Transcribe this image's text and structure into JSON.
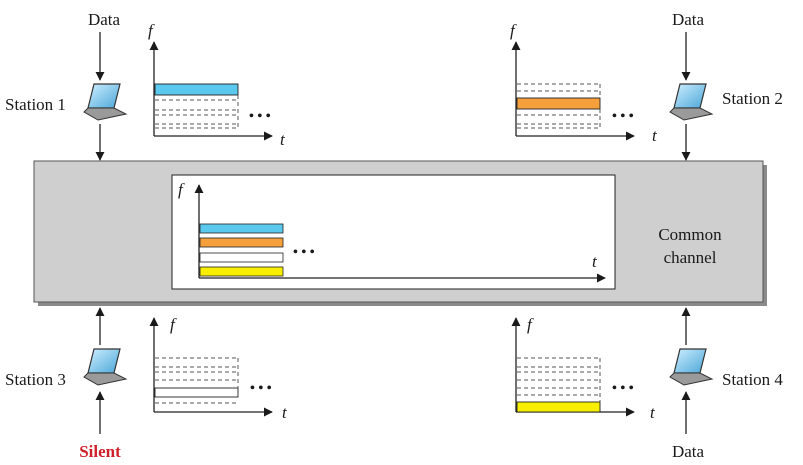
{
  "stations": [
    {
      "name": "Station 1",
      "io_label": "Data",
      "active_band": 0,
      "band_color": "#5bc8ee"
    },
    {
      "name": "Station 2",
      "io_label": "Data",
      "active_band": 1,
      "band_color": "#f5a03c"
    },
    {
      "name": "Station 3",
      "io_label": "Silent",
      "active_band": 2,
      "band_color": "#ffffff"
    },
    {
      "name": "Station 4",
      "io_label": "Data",
      "active_band": 3,
      "band_color": "#f7ee00"
    }
  ],
  "axis_labels": {
    "frequency": "f",
    "time": "t"
  },
  "ellipsis": "• • •",
  "channel": {
    "label_line1": "Common",
    "label_line2": "channel"
  },
  "colors": {
    "channel_fill": "#cfcfcf",
    "silent_text": "#d0202a",
    "band_blue": "#5bc8ee",
    "band_orange": "#f5a03c",
    "band_white": "#ffffff",
    "band_yellow": "#f7ee00"
  }
}
